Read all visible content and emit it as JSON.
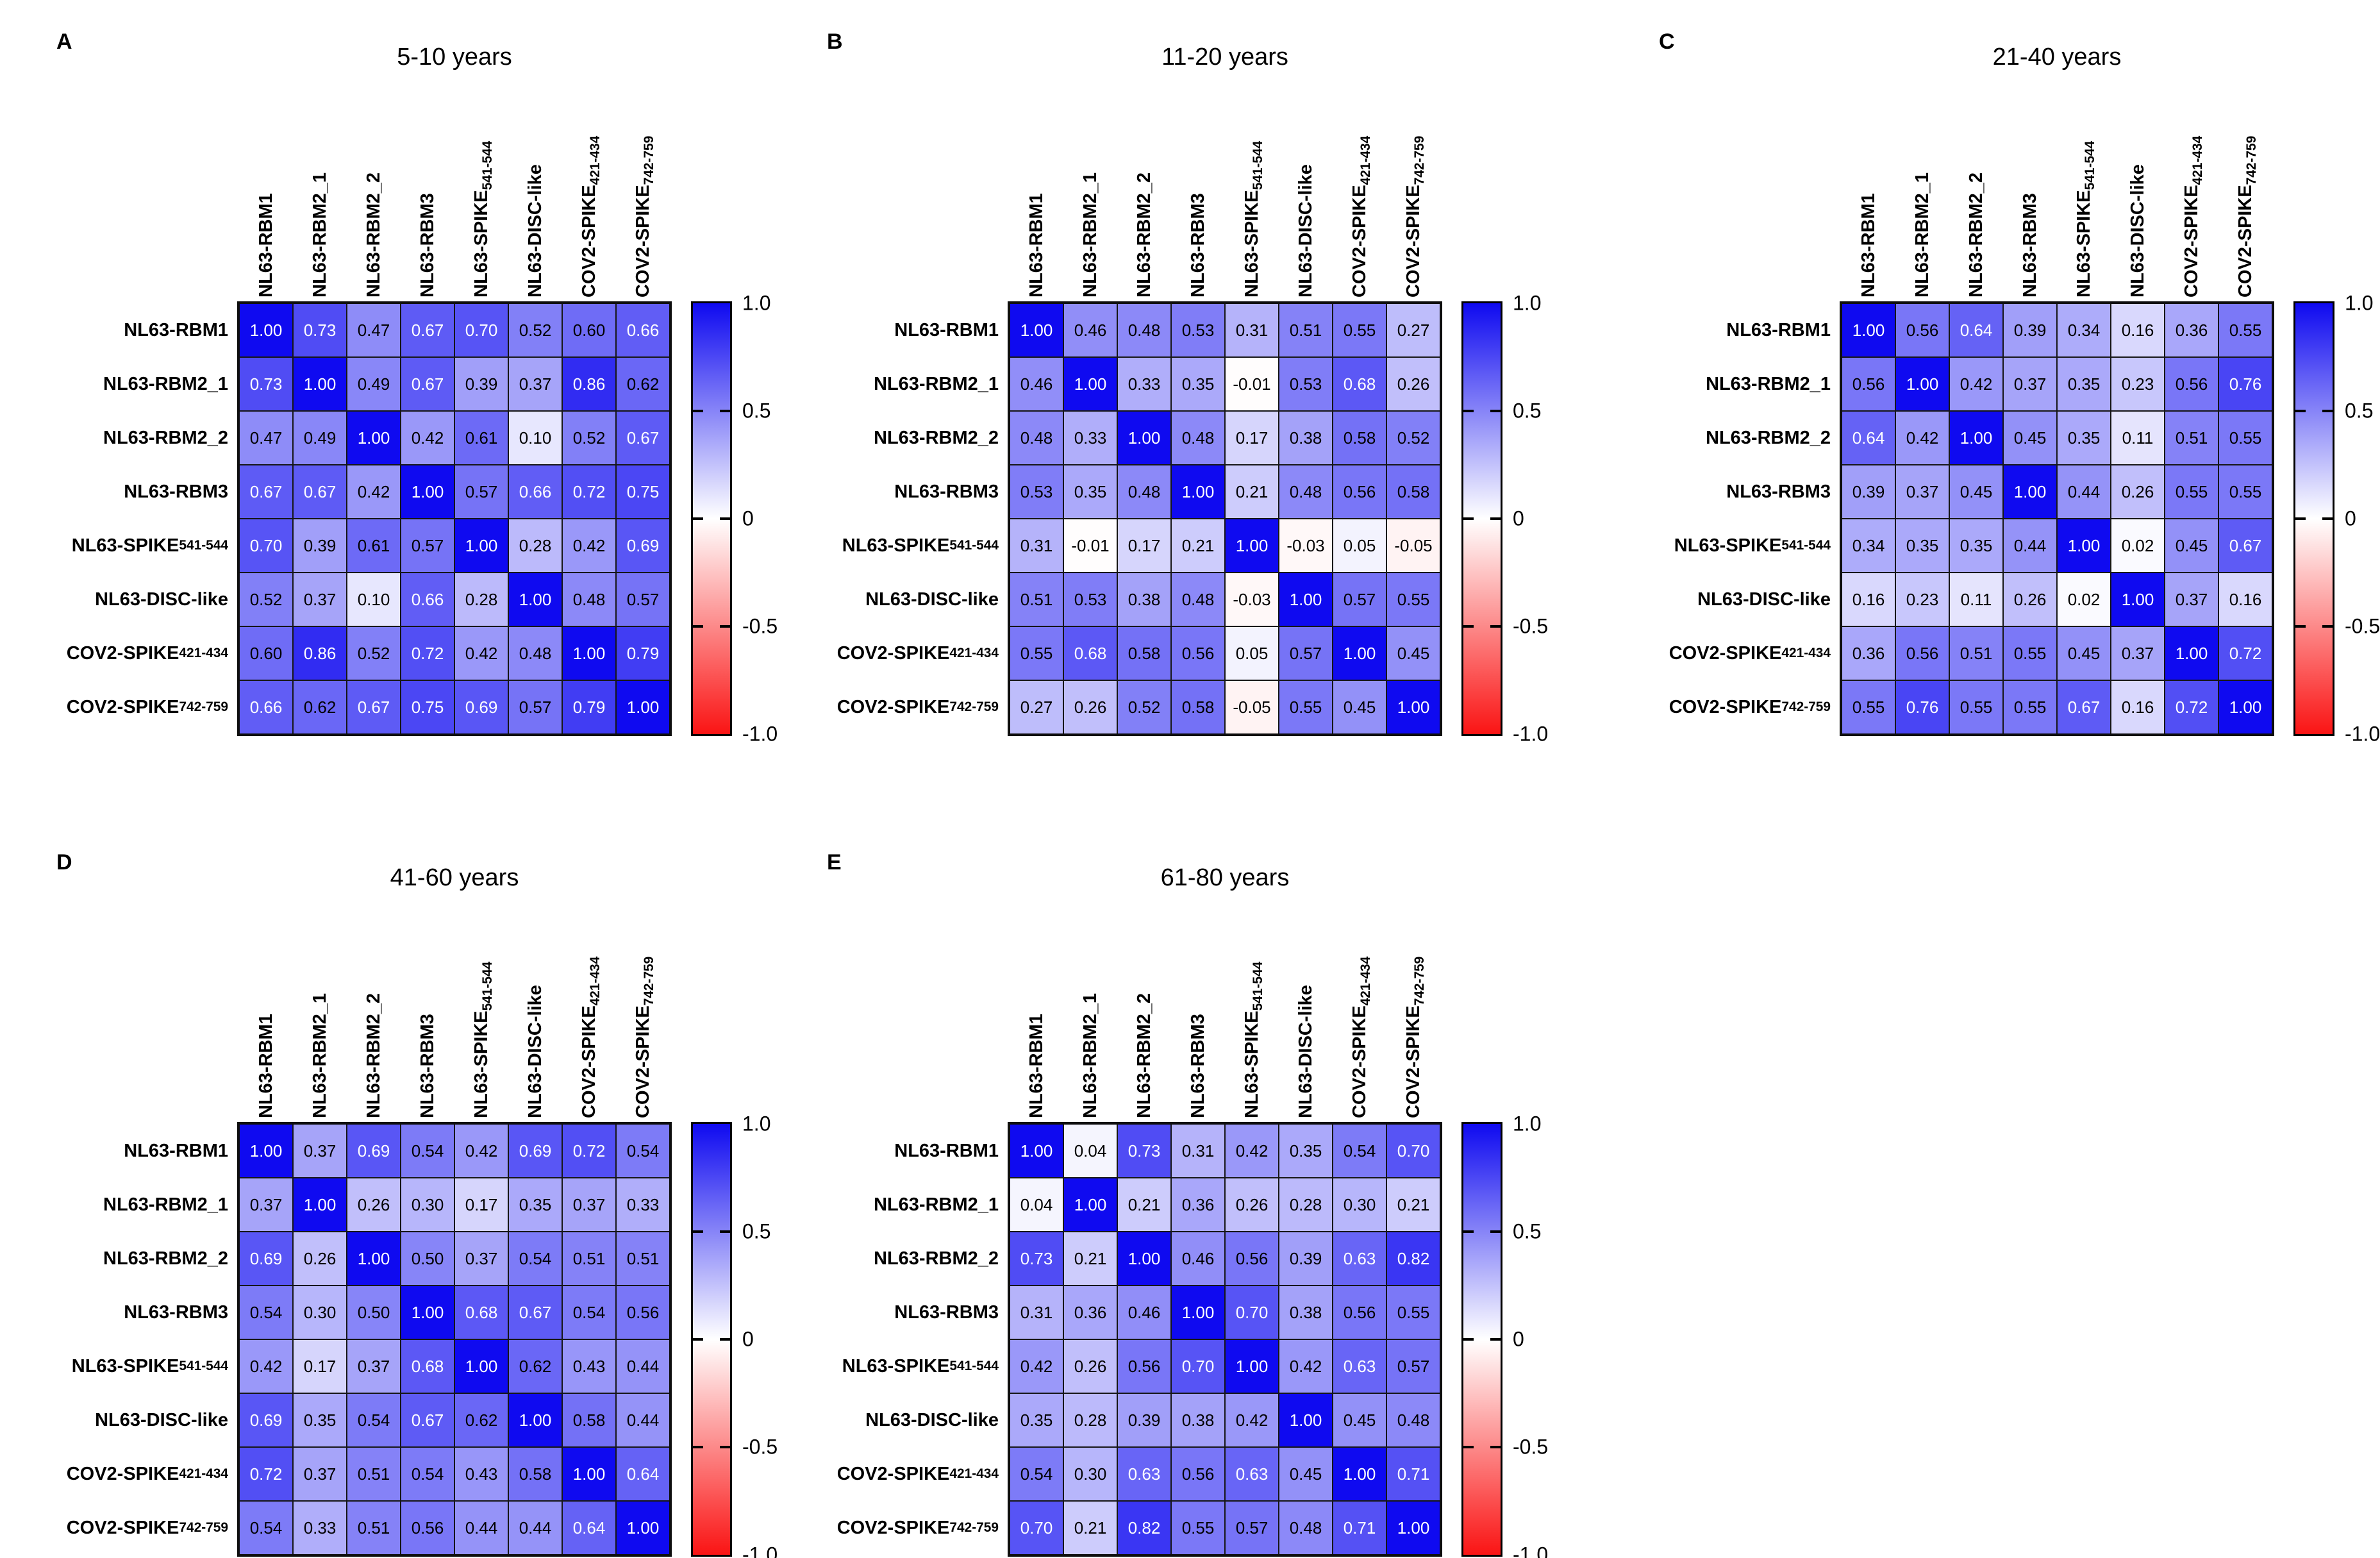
{
  "chart_data": {
    "type": "heatmap",
    "description": "Correlation matrices of antibody responses by age group",
    "labels": [
      "NL63-RBM1",
      "NL63-RBM2_1",
      "NL63-RBM2_2",
      "NL63-RBM3",
      "NL63-SPIKE_{541-544}",
      "NL63-DISC-like",
      "COV2-SPIKE_{421-434}",
      "COV2-SPIKE_{742-759}"
    ],
    "colorbar": {
      "ticks": [
        "1.0",
        "0.5",
        "0",
        "-0.5",
        "-1.0"
      ],
      "range": [
        -1,
        1
      ],
      "positive_color": "#0f0af0",
      "zero_color": "#ffffff",
      "negative_color": "#fa1414"
    },
    "panels": [
      {
        "letter": "A",
        "title": "5-10 years",
        "matrix": [
          [
            1.0,
            0.73,
            0.47,
            0.67,
            0.7,
            0.52,
            0.6,
            0.66
          ],
          [
            0.73,
            1.0,
            0.49,
            0.67,
            0.39,
            0.37,
            0.86,
            0.62
          ],
          [
            0.47,
            0.49,
            1.0,
            0.42,
            0.61,
            0.1,
            0.52,
            0.67
          ],
          [
            0.67,
            0.67,
            0.42,
            1.0,
            0.57,
            0.66,
            0.72,
            0.75
          ],
          [
            0.7,
            0.39,
            0.61,
            0.57,
            1.0,
            0.28,
            0.42,
            0.69
          ],
          [
            0.52,
            0.37,
            0.1,
            0.66,
            0.28,
            1.0,
            0.48,
            0.57
          ],
          [
            0.6,
            0.86,
            0.52,
            0.72,
            0.42,
            0.48,
            1.0,
            0.79
          ],
          [
            0.66,
            0.62,
            0.67,
            0.75,
            0.69,
            0.57,
            0.79,
            1.0
          ]
        ]
      },
      {
        "letter": "B",
        "title": "11-20 years",
        "matrix": [
          [
            1.0,
            0.46,
            0.48,
            0.53,
            0.31,
            0.51,
            0.55,
            0.27
          ],
          [
            0.46,
            1.0,
            0.33,
            0.35,
            -0.01,
            0.53,
            0.68,
            0.26
          ],
          [
            0.48,
            0.33,
            1.0,
            0.48,
            0.17,
            0.38,
            0.58,
            0.52
          ],
          [
            0.53,
            0.35,
            0.48,
            1.0,
            0.21,
            0.48,
            0.56,
            0.58
          ],
          [
            0.31,
            -0.01,
            0.17,
            0.21,
            1.0,
            -0.03,
            0.05,
            -0.05
          ],
          [
            0.51,
            0.53,
            0.38,
            0.48,
            -0.03,
            1.0,
            0.57,
            0.55
          ],
          [
            0.55,
            0.68,
            0.58,
            0.56,
            0.05,
            0.57,
            1.0,
            0.45
          ],
          [
            0.27,
            0.26,
            0.52,
            0.58,
            -0.05,
            0.55,
            0.45,
            1.0
          ]
        ]
      },
      {
        "letter": "C",
        "title": "21-40 years",
        "matrix": [
          [
            1.0,
            0.56,
            0.64,
            0.39,
            0.34,
            0.16,
            0.36,
            0.55
          ],
          [
            0.56,
            1.0,
            0.42,
            0.37,
            0.35,
            0.23,
            0.56,
            0.76
          ],
          [
            0.64,
            0.42,
            1.0,
            0.45,
            0.35,
            0.11,
            0.51,
            0.55
          ],
          [
            0.39,
            0.37,
            0.45,
            1.0,
            0.44,
            0.26,
            0.55,
            0.55
          ],
          [
            0.34,
            0.35,
            0.35,
            0.44,
            1.0,
            0.02,
            0.45,
            0.67
          ],
          [
            0.16,
            0.23,
            0.11,
            0.26,
            0.02,
            1.0,
            0.37,
            0.16
          ],
          [
            0.36,
            0.56,
            0.51,
            0.55,
            0.45,
            0.37,
            1.0,
            0.72
          ],
          [
            0.55,
            0.76,
            0.55,
            0.55,
            0.67,
            0.16,
            0.72,
            1.0
          ]
        ]
      },
      {
        "letter": "D",
        "title": "41-60 years",
        "matrix": [
          [
            1.0,
            0.37,
            0.69,
            0.54,
            0.42,
            0.69,
            0.72,
            0.54
          ],
          [
            0.37,
            1.0,
            0.26,
            0.3,
            0.17,
            0.35,
            0.37,
            0.33
          ],
          [
            0.69,
            0.26,
            1.0,
            0.5,
            0.37,
            0.54,
            0.51,
            0.51
          ],
          [
            0.54,
            0.3,
            0.5,
            1.0,
            0.68,
            0.67,
            0.54,
            0.56
          ],
          [
            0.42,
            0.17,
            0.37,
            0.68,
            1.0,
            0.62,
            0.43,
            0.44
          ],
          [
            0.69,
            0.35,
            0.54,
            0.67,
            0.62,
            1.0,
            0.58,
            0.44
          ],
          [
            0.72,
            0.37,
            0.51,
            0.54,
            0.43,
            0.58,
            1.0,
            0.64
          ],
          [
            0.54,
            0.33,
            0.51,
            0.56,
            0.44,
            0.44,
            0.64,
            1.0
          ]
        ]
      },
      {
        "letter": "E",
        "title": "61-80 years",
        "matrix": [
          [
            1.0,
            0.04,
            0.73,
            0.31,
            0.42,
            0.35,
            0.54,
            0.7
          ],
          [
            0.04,
            1.0,
            0.21,
            0.36,
            0.26,
            0.28,
            0.3,
            0.21
          ],
          [
            0.73,
            0.21,
            1.0,
            0.46,
            0.56,
            0.39,
            0.63,
            0.82
          ],
          [
            0.31,
            0.36,
            0.46,
            1.0,
            0.7,
            0.38,
            0.56,
            0.55
          ],
          [
            0.42,
            0.26,
            0.56,
            0.7,
            1.0,
            0.42,
            0.63,
            0.57
          ],
          [
            0.35,
            0.28,
            0.39,
            0.38,
            0.42,
            1.0,
            0.45,
            0.48
          ],
          [
            0.54,
            0.3,
            0.63,
            0.56,
            0.63,
            0.45,
            1.0,
            0.71
          ],
          [
            0.7,
            0.21,
            0.82,
            0.55,
            0.57,
            0.48,
            0.71,
            1.0
          ]
        ]
      }
    ]
  }
}
